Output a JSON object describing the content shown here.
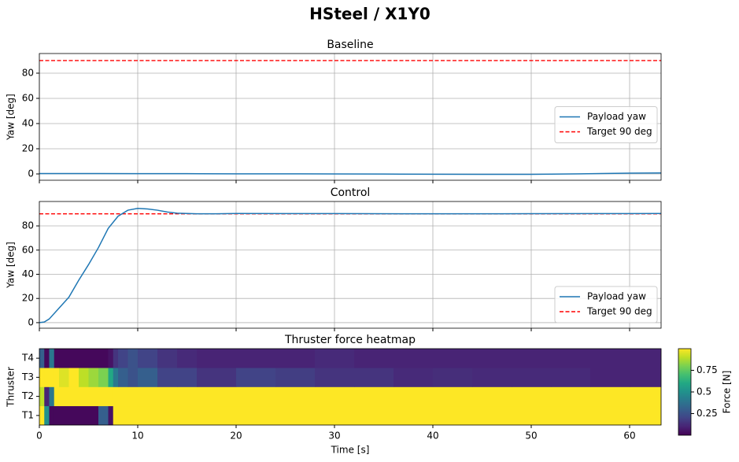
{
  "title": "HSteel / X1Y0",
  "chart_data": [
    {
      "type": "line",
      "title": "Baseline",
      "ylabel": "Yaw [deg]",
      "x": [
        0,
        5,
        10,
        15,
        20,
        25,
        30,
        35,
        40,
        45,
        50,
        55,
        60,
        63.2
      ],
      "series": [
        {
          "name": "Payload yaw",
          "color": "#1f77b4",
          "values": [
            0.3,
            0.3,
            0.2,
            0.2,
            0.1,
            0.1,
            0,
            -0.1,
            -0.2,
            -0.3,
            -0.3,
            0.1,
            0.6,
            0.8
          ]
        }
      ],
      "hlines": [
        {
          "name": "Target 90 deg",
          "y": 90,
          "color": "#ff0000",
          "style": "dashed"
        }
      ],
      "xlim": [
        0,
        63.2
      ],
      "xticks": [
        0,
        10,
        20,
        30,
        40,
        50,
        60
      ],
      "ylim": [
        -5,
        95.6
      ],
      "yticks": [
        0,
        20,
        40,
        60,
        80
      ],
      "grid": true,
      "legend": "center right"
    },
    {
      "type": "line",
      "title": "Control",
      "ylabel": "Yaw [deg]",
      "x": [
        0,
        0.5,
        1,
        2,
        3,
        4,
        5,
        6,
        7,
        8,
        9,
        10,
        11,
        12,
        13,
        14,
        16,
        18,
        20,
        25,
        30,
        40,
        50,
        60,
        63.2
      ],
      "series": [
        {
          "name": "Payload yaw",
          "color": "#1f77b4",
          "values": [
            0,
            0.5,
            3,
            12,
            21,
            35,
            48,
            62,
            78,
            88,
            93,
            94.5,
            94,
            93,
            91.5,
            90.5,
            90,
            90,
            90.3,
            90.2,
            90.2,
            90,
            90.1,
            90.2,
            90.3
          ]
        }
      ],
      "hlines": [
        {
          "name": "Target 90 deg",
          "y": 90,
          "color": "#ff0000",
          "style": "dashed"
        }
      ],
      "xlim": [
        0,
        63.2
      ],
      "xticks": [
        0,
        10,
        20,
        30,
        40,
        50,
        60
      ],
      "ylim": [
        -4.6,
        100.2
      ],
      "yticks": [
        0,
        20,
        40,
        60,
        80
      ],
      "grid": true,
      "legend": "lower right"
    },
    {
      "type": "heatmap",
      "title": "Thruster force heatmap",
      "xlabel": "Time [s]",
      "ylabel": "Thruster",
      "colorbar_label": "Force [N]",
      "cmap": "viridis",
      "x_edges": [
        0,
        0.5,
        1,
        1.5,
        2,
        3,
        4,
        5,
        6,
        7,
        7.5,
        8,
        9,
        10,
        12,
        14,
        16,
        20,
        24,
        28,
        32,
        36,
        40,
        44,
        48,
        52,
        56,
        60,
        63.2
      ],
      "categories": [
        "T1",
        "T2",
        "T3",
        "T4"
      ],
      "values": [
        [
          1,
          0.5,
          0.02,
          0.02,
          0.02,
          0.02,
          0.02,
          0.02,
          0.3,
          0.05,
          1,
          1,
          1,
          1,
          1,
          1,
          1,
          1,
          1,
          1,
          1,
          1,
          1,
          1,
          1,
          1,
          1,
          1
        ],
        [
          0.9,
          0.1,
          0.4,
          1,
          1,
          1,
          1,
          1,
          1,
          1,
          1,
          1,
          1,
          1,
          1,
          1,
          1,
          1,
          1,
          1,
          1,
          1,
          1,
          1,
          1,
          1,
          1,
          1
        ],
        [
          1,
          1,
          1,
          1,
          0.95,
          1,
          0.9,
          0.85,
          0.8,
          0.6,
          0.4,
          0.3,
          0.25,
          0.3,
          0.2,
          0.2,
          0.15,
          0.2,
          0.18,
          0.15,
          0.15,
          0.12,
          0.13,
          0.12,
          0.12,
          0.12,
          0.1,
          0.1
        ],
        [
          0.3,
          0.02,
          0.4,
          0.02,
          0.02,
          0.02,
          0.02,
          0.02,
          0.02,
          0.05,
          0.15,
          0.2,
          0.25,
          0.2,
          0.15,
          0.12,
          0.1,
          0.1,
          0.1,
          0.12,
          0.1,
          0.1,
          0.1,
          0.1,
          0.1,
          0.1,
          0.1,
          0.1
        ]
      ],
      "xlim": [
        0,
        63.2
      ],
      "xticks": [
        0,
        10,
        20,
        30,
        40,
        50,
        60
      ],
      "clim": [
        0,
        1.0
      ],
      "cticks": [
        0.25,
        0.5,
        0.75
      ]
    }
  ]
}
